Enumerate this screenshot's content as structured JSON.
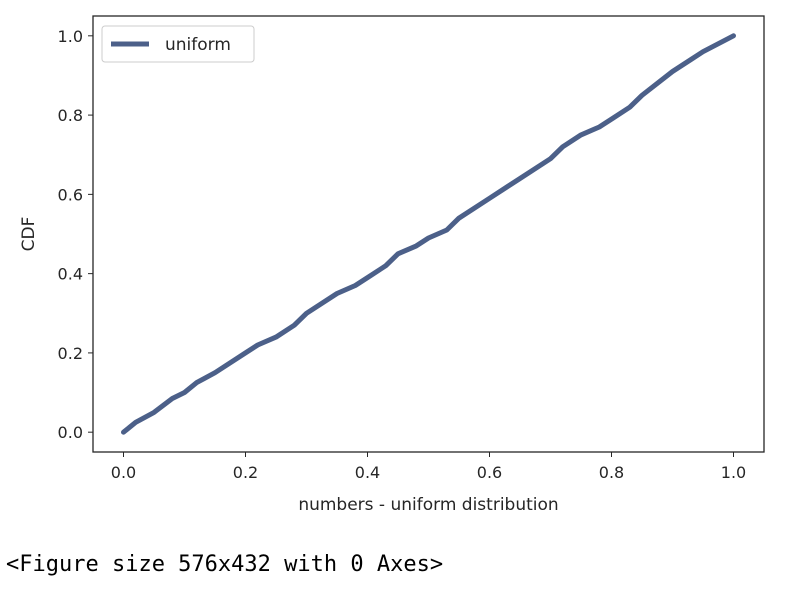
{
  "chart_data": {
    "type": "line",
    "title": "",
    "xlabel": "numbers - uniform distribution",
    "ylabel": "CDF",
    "xlim": [
      -0.05,
      1.05
    ],
    "ylim": [
      -0.05,
      1.05
    ],
    "xticks": [
      "0.0",
      "0.2",
      "0.4",
      "0.6",
      "0.8",
      "1.0"
    ],
    "yticks": [
      "0.0",
      "0.2",
      "0.4",
      "0.6",
      "0.8",
      "1.0"
    ],
    "grid": false,
    "legend_position": "upper left",
    "series": [
      {
        "name": "uniform",
        "color": "#4c6089",
        "x": [
          0.0,
          0.02,
          0.05,
          0.08,
          0.1,
          0.12,
          0.15,
          0.2,
          0.22,
          0.25,
          0.28,
          0.3,
          0.35,
          0.38,
          0.4,
          0.43,
          0.45,
          0.48,
          0.5,
          0.53,
          0.55,
          0.6,
          0.63,
          0.65,
          0.7,
          0.72,
          0.75,
          0.78,
          0.8,
          0.83,
          0.85,
          0.9,
          0.93,
          0.95,
          1.0
        ],
        "y": [
          0.0,
          0.025,
          0.05,
          0.085,
          0.1,
          0.125,
          0.15,
          0.2,
          0.22,
          0.24,
          0.27,
          0.3,
          0.35,
          0.37,
          0.39,
          0.42,
          0.45,
          0.47,
          0.49,
          0.51,
          0.54,
          0.59,
          0.62,
          0.64,
          0.69,
          0.72,
          0.75,
          0.77,
          0.79,
          0.82,
          0.85,
          0.91,
          0.94,
          0.96,
          1.0
        ]
      }
    ]
  },
  "output_text": "<Figure size 576x432 with 0 Axes>"
}
